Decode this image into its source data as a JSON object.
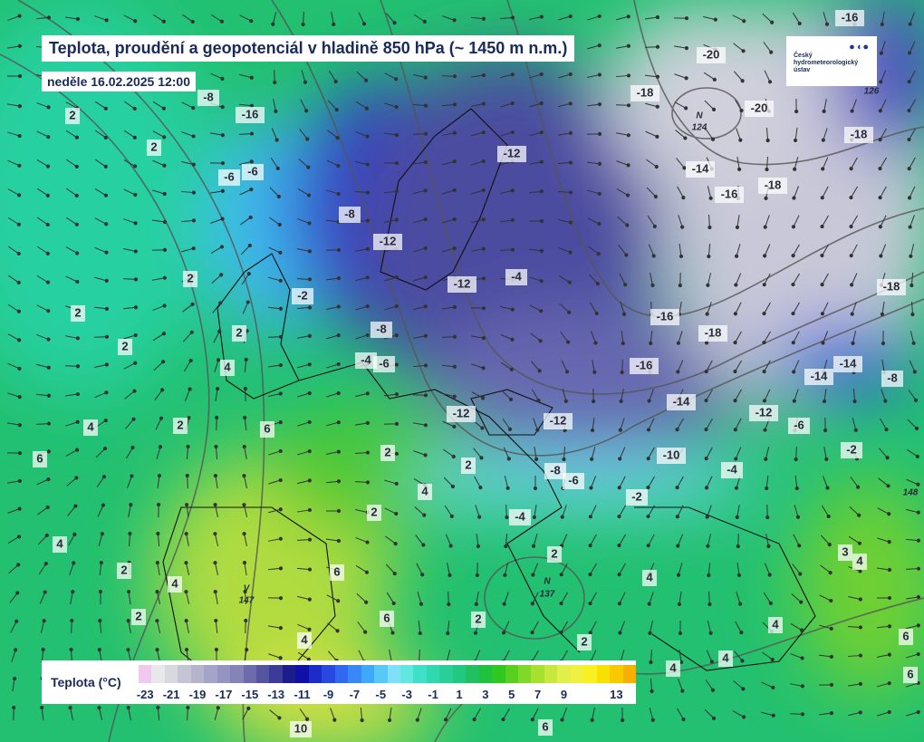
{
  "header": {
    "title": "Teplota, proudění a geopotenciál v hladině 850 hPa (~ 1450 m n.m.)",
    "date": "neděle 16.02.2025 12:00"
  },
  "logo": {
    "name": "Český hydrometeorologický ústav"
  },
  "legend": {
    "title": "Teplota (°C)",
    "labels": [
      "-23",
      "-21",
      "-19",
      "-17",
      "-15",
      "-13",
      "-11",
      "-9",
      "-7",
      "-5",
      "-3",
      "-1",
      "1",
      "3",
      "5",
      "7",
      "9",
      "13"
    ],
    "colors": [
      "#f0c8f0",
      "#e8e8ec",
      "#d8d8e0",
      "#c4c4d4",
      "#b4b4cc",
      "#a4a4c8",
      "#9494c0",
      "#8484b8",
      "#6c6cac",
      "#5454a0",
      "#3c3c98",
      "#1c1c8c",
      "#1010a8",
      "#1c2cc8",
      "#2848e0",
      "#3068f0",
      "#3888f8",
      "#40a8f8",
      "#58c8f8",
      "#80e0f8",
      "#60e8e0",
      "#40e0c8",
      "#30d8b0",
      "#28d098",
      "#20c880",
      "#20c060",
      "#20c040",
      "#30c820",
      "#58d020",
      "#80d828",
      "#a8e030",
      "#c8e840",
      "#e0f048",
      "#f0f040",
      "#f8f020",
      "#f8e000",
      "#f8c800",
      "#f8b000"
    ]
  },
  "map_labels": [
    "-16",
    "-20",
    "-18",
    "-20",
    "N",
    "124",
    "-18",
    "126",
    "-14",
    "-16",
    "-18",
    "-18",
    "-12",
    "-8",
    "-16",
    "-6",
    "-6",
    "-8",
    "-12",
    "-12",
    "-4",
    "-2",
    "-8",
    "-4",
    "-6",
    "-16",
    "-18",
    "-16",
    "-14",
    "-14",
    "-14",
    "-12",
    "-8",
    "-12",
    "-12",
    "-6",
    "-10",
    "-2",
    "-8",
    "-6",
    "-4",
    "-2",
    "-4",
    "148",
    "2",
    "2",
    "2",
    "2",
    "2",
    "2",
    "4",
    "2",
    "4",
    "6",
    "6",
    "2",
    "2",
    "4",
    "2",
    "4",
    "2",
    "4",
    "6",
    "V",
    "147",
    "2",
    "4",
    "6",
    "N",
    "137",
    "2",
    "2",
    "2",
    "4",
    "4",
    "4",
    "4",
    "6",
    "6",
    "10",
    "6",
    "3",
    "4"
  ]
}
